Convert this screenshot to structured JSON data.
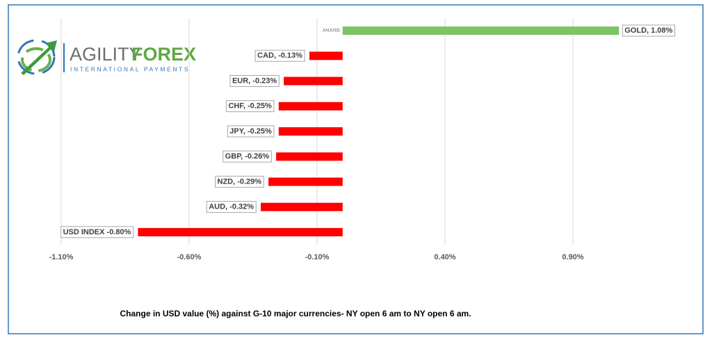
{
  "logo": {
    "word1": "AGILITY",
    "word2": "FOREX",
    "tagline": "INTERNATIONAL PAYMENTS"
  },
  "chart_data": {
    "type": "barh",
    "caption": "Change in  USD value (%)  against  G-10 major currencies- NY open 6 am to NY open 6 am.",
    "categories": [
      "XAUUSD",
      null,
      null,
      null,
      null,
      null,
      null,
      null,
      null
    ],
    "values": [
      1.08,
      -0.13,
      -0.23,
      -0.25,
      -0.25,
      -0.26,
      -0.29,
      -0.32,
      -0.8
    ],
    "value_labels": [
      "GOLD, 1.08%",
      "CAD, -0.13%",
      "EUR, -0.23%",
      "CHF, -0.25%",
      "JPY, -0.25%",
      "GBP, -0.26%",
      "NZD, -0.29%",
      "AUD, -0.32%",
      "USD INDEX -0.80%"
    ],
    "colors": [
      "#7cc464",
      "#ff0000",
      "#ff0000",
      "#ff0000",
      "#ff0000",
      "#ff0000",
      "#ff0000",
      "#ff0000",
      "#ff0000"
    ],
    "xlim": [
      -1.1,
      1.4
    ],
    "xticks": [
      {
        "value": -1.1,
        "label": "-1.10%"
      },
      {
        "value": -0.6,
        "label": "-0.60%"
      },
      {
        "value": -0.1,
        "label": "-0.10%"
      },
      {
        "value": 0.4,
        "label": "0.40%"
      },
      {
        "value": 0.9,
        "label": "0.90%"
      }
    ],
    "grid": true
  }
}
